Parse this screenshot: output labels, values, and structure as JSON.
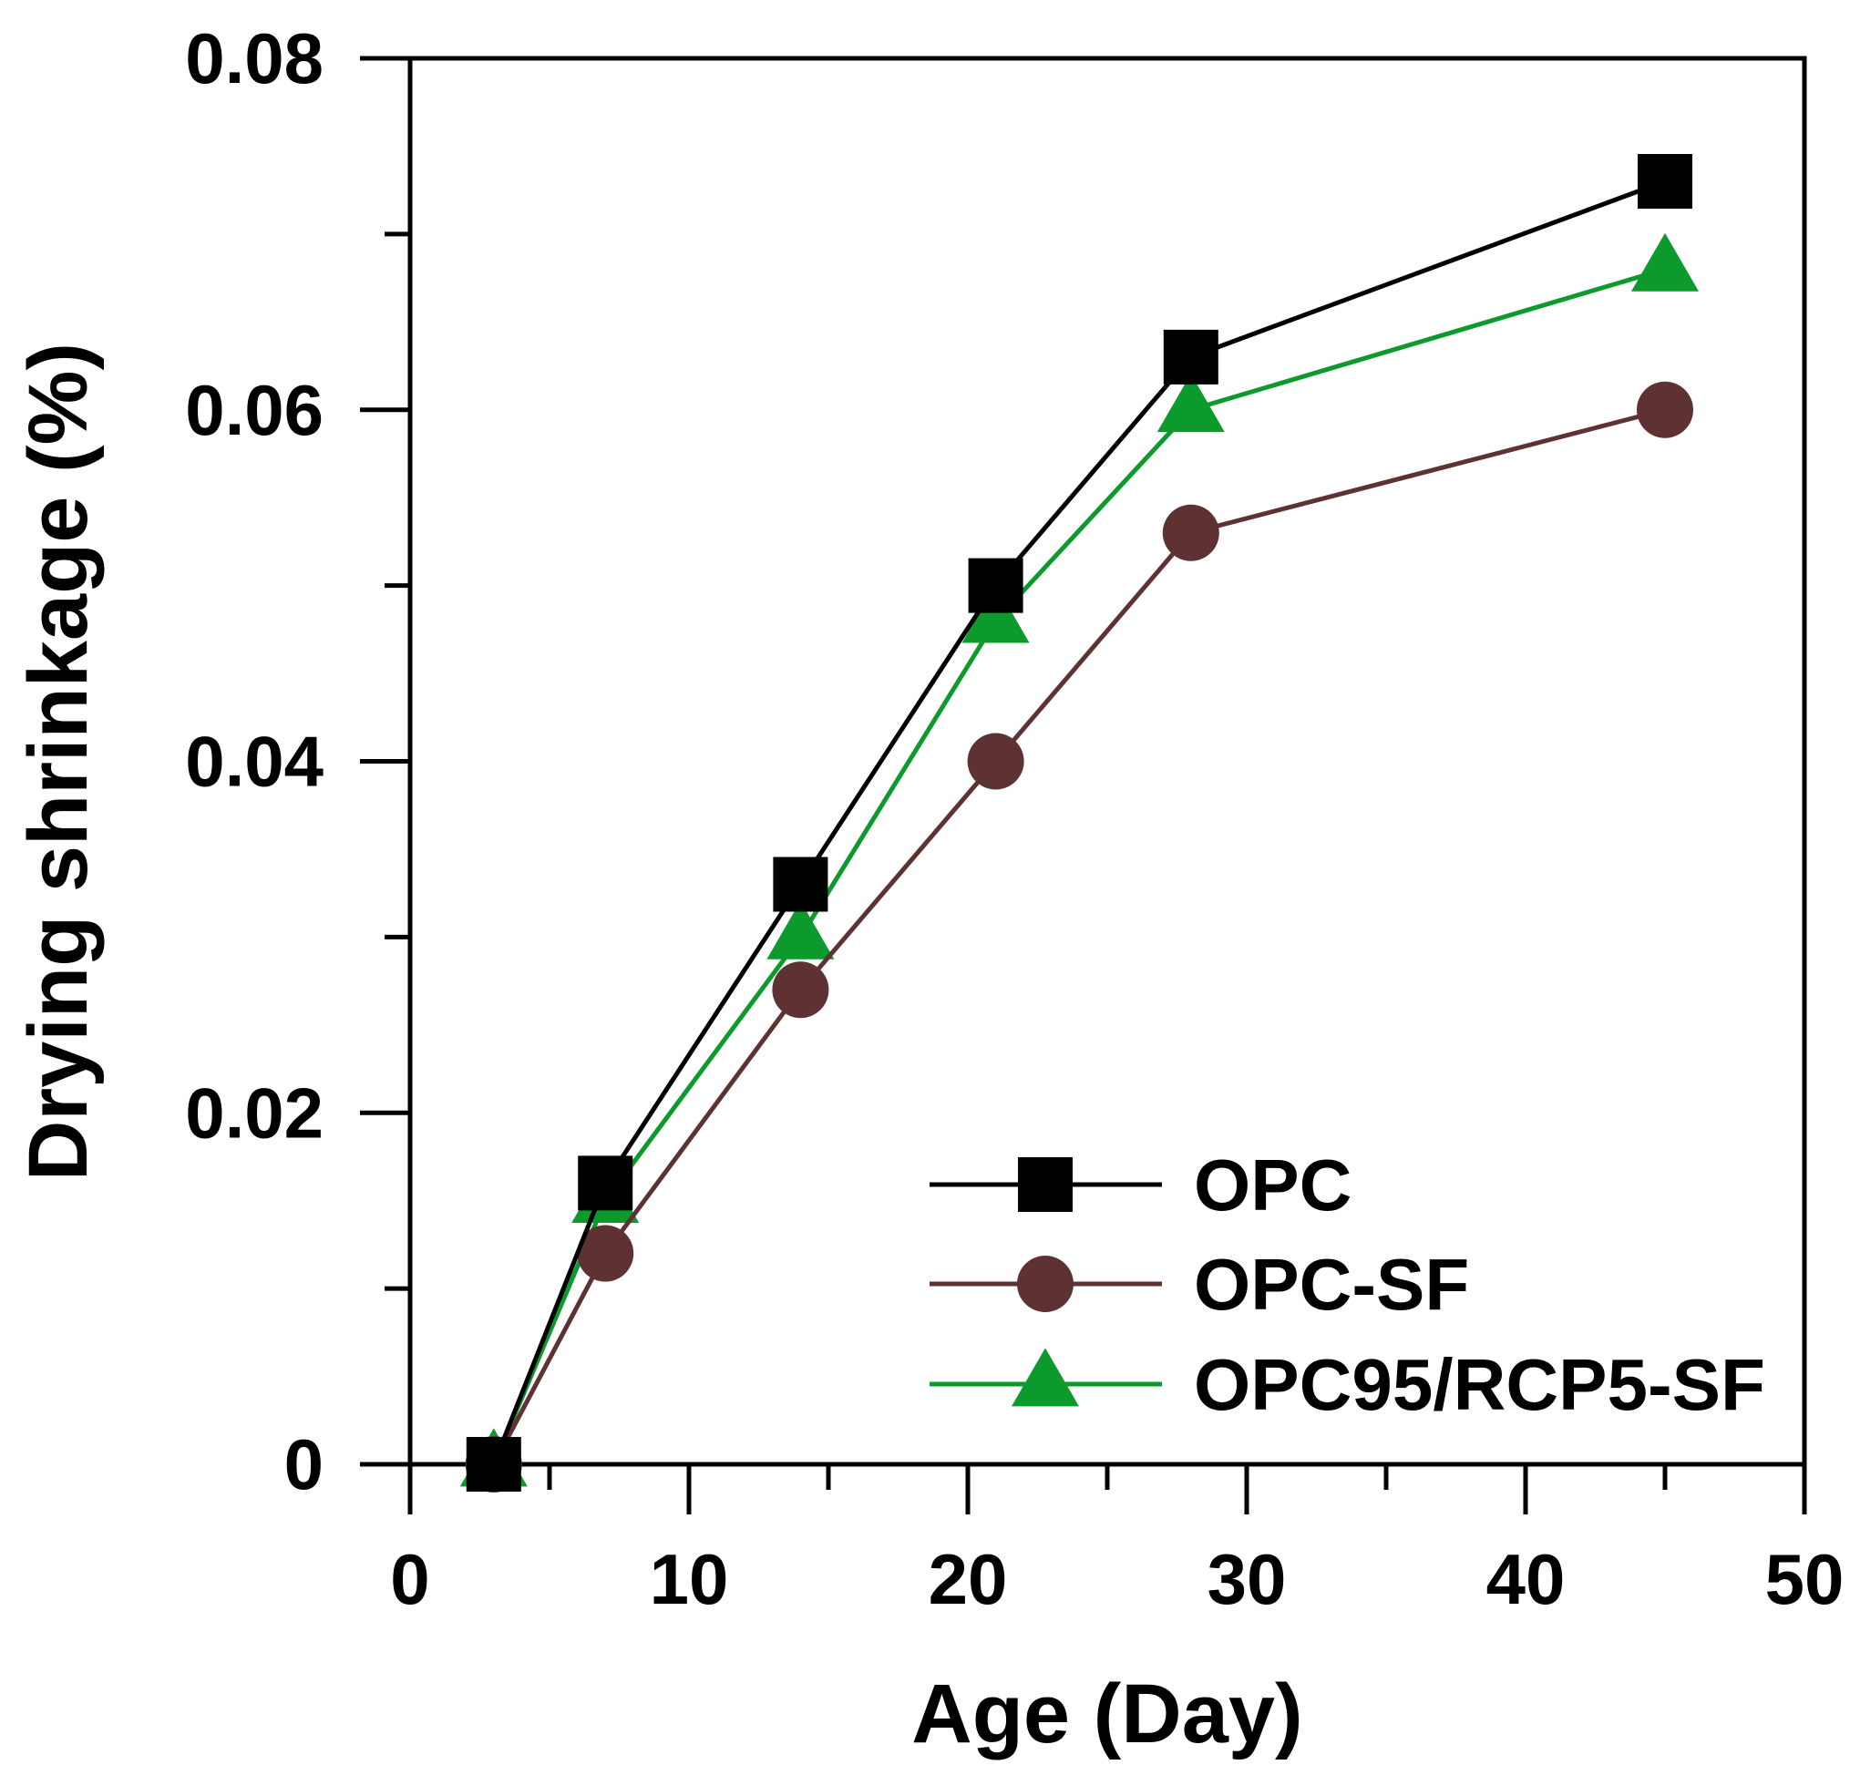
{
  "chart_data": {
    "type": "line",
    "title": "",
    "xlabel": "Age (Day)",
    "ylabel": "Drying shrinkage (%)",
    "xlim": [
      0,
      50
    ],
    "ylim": [
      0,
      0.08
    ],
    "xticks": [
      0,
      10,
      20,
      30,
      40,
      50
    ],
    "xtick_labels": [
      "0",
      "10",
      "20",
      "30",
      "40",
      "50"
    ],
    "yticks": [
      0,
      0.02,
      0.04,
      0.06,
      0.08
    ],
    "ytick_labels": [
      "0",
      "0.02",
      "0.04",
      "0.06",
      "0.08"
    ],
    "x_minor_ticks": [
      5,
      15,
      25,
      35,
      45
    ],
    "y_minor_ticks": [
      0.01,
      0.03,
      0.05,
      0.07
    ],
    "grid": false,
    "legend_position": "bottom-right",
    "x": [
      3,
      7,
      14,
      21,
      28,
      45
    ],
    "series": [
      {
        "name": "OPC",
        "marker": "square",
        "color": "#000000",
        "values": [
          0,
          0.016,
          0.033,
          0.05,
          0.063,
          0.073
        ]
      },
      {
        "name": "OPC-SF",
        "marker": "circle",
        "color": "#5e3232",
        "values": [
          0,
          0.012,
          0.027,
          0.04,
          0.053,
          0.06
        ]
      },
      {
        "name": "OPC95/RCP5-SF",
        "marker": "triangle",
        "color": "#0c9a2c",
        "values": [
          0,
          0.015,
          0.03,
          0.048,
          0.06,
          0.068
        ]
      }
    ]
  }
}
